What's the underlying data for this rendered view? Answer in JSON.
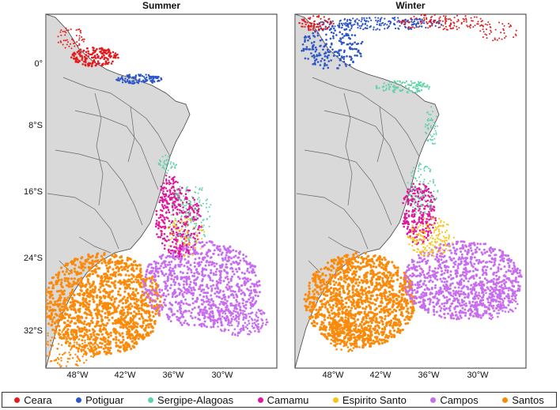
{
  "panels": [
    {
      "title": "Summer"
    },
    {
      "title": "Winter"
    }
  ],
  "axes": {
    "y_ticks": [
      "0°",
      "8°S",
      "16°S",
      "24°S",
      "32°S"
    ],
    "y_values": [
      0,
      -8,
      -16,
      -24,
      -32
    ],
    "x_ticks": [
      "48°W",
      "42°W",
      "36°W",
      "30°W"
    ],
    "x_values": [
      -48,
      -42,
      -36,
      -30
    ],
    "lon_range": [
      -53,
      -24
    ],
    "lat_range": [
      6,
      -38.5
    ]
  },
  "legend": {
    "items": [
      {
        "label": "Ceara",
        "color": "#e41a1c"
      },
      {
        "label": "Potiguar",
        "color": "#2b55c8"
      },
      {
        "label": "Sergipe-Alagoas",
        "color": "#5ed3a6"
      },
      {
        "label": "Camamu",
        "color": "#e0179b"
      },
      {
        "label": "Espirito Santo",
        "color": "#f5c518"
      },
      {
        "label": "Campos",
        "color": "#c86cf0"
      },
      {
        "label": "Santos",
        "color": "#fb8a0a"
      }
    ]
  },
  "colors": {
    "land": "#d9d9d9",
    "border": "#555555",
    "ocean": "#ffffff"
  }
}
